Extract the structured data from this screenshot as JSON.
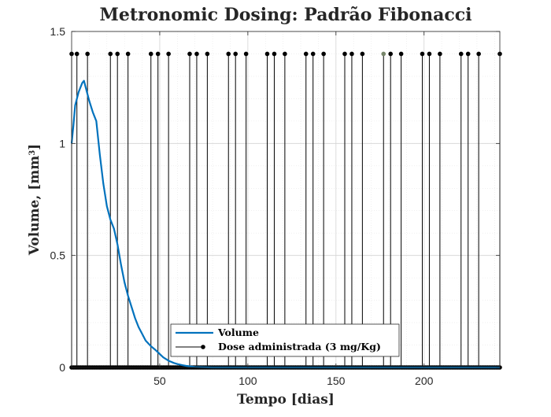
{
  "chart_data": {
    "type": "line",
    "title": "Metronomic Dosing: Padrão Fibonacci",
    "xlabel": "Tempo [dias]",
    "ylabel_main": "Volume, [mm",
    "ylabel_sup": "3",
    "ylabel_close": "]",
    "xlim": [
      0,
      243
    ],
    "ylim": [
      0,
      1.5
    ],
    "x_ticks": [
      50,
      100,
      150,
      200
    ],
    "y_ticks": [
      0,
      0.5,
      1,
      1.5
    ],
    "x_tick_labels": [
      "50",
      "100",
      "150",
      "200"
    ],
    "y_tick_labels": [
      "0",
      "0.5",
      "1",
      "1.5"
    ],
    "grid": true,
    "legend_position": "bottom-center",
    "series": [
      {
        "name": "Volume",
        "color": "#0072BD",
        "style": "line",
        "x": [
          0,
          1,
          2,
          4,
          6,
          7,
          8,
          10,
          12,
          13,
          14,
          16,
          18,
          20,
          22,
          24,
          26,
          28,
          30,
          32,
          34,
          36,
          38,
          40,
          42,
          45,
          48,
          50,
          52,
          55,
          58,
          60,
          63,
          65,
          68,
          70,
          75,
          80,
          90,
          100,
          150,
          200,
          243
        ],
        "y": [
          1.0,
          1.08,
          1.17,
          1.23,
          1.27,
          1.28,
          1.25,
          1.19,
          1.14,
          1.12,
          1.1,
          0.95,
          0.82,
          0.72,
          0.66,
          0.62,
          0.55,
          0.46,
          0.38,
          0.32,
          0.27,
          0.22,
          0.18,
          0.15,
          0.12,
          0.095,
          0.075,
          0.06,
          0.045,
          0.03,
          0.02,
          0.015,
          0.01,
          0.007,
          0.004,
          0.002,
          0.001,
          0.0,
          0.0,
          0.0,
          0.0,
          0.0,
          0.0
        ]
      },
      {
        "name": "Dose administrada (3 mg/Kg)",
        "color": "#000000",
        "style": "stem",
        "dose_value": 1.4,
        "dose_days": [
          0,
          3,
          9,
          22,
          26,
          32,
          45,
          49,
          55,
          67,
          71,
          77,
          89,
          93,
          99,
          111,
          115,
          121,
          133,
          137,
          143,
          155,
          159,
          165,
          177,
          181,
          187,
          199,
          203,
          209,
          221,
          225,
          231,
          243
        ],
        "highlight_day": 177,
        "highlight_color": "#77866a"
      }
    ]
  }
}
